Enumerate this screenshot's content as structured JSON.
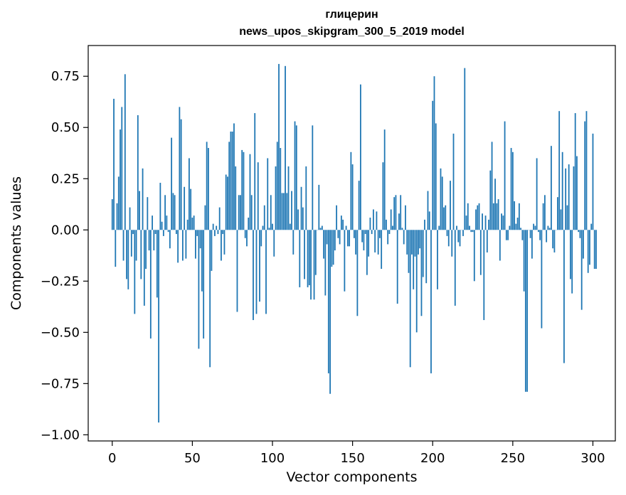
{
  "chart_data": {
    "type": "bar",
    "title": "глицерин",
    "subtitle": "news_upos_skipgram_300_5_2019 model",
    "xlabel": "Vector components",
    "ylabel": "Components values",
    "xlim": [
      -15,
      314
    ],
    "ylim": [
      -1.03,
      0.9
    ],
    "xticks": [
      0,
      50,
      100,
      150,
      200,
      250,
      300
    ],
    "yticks": [
      -1.0,
      -0.75,
      -0.5,
      -0.25,
      0.0,
      0.25,
      0.5,
      0.75
    ],
    "xtick_labels": [
      "0",
      "50",
      "100",
      "150",
      "200",
      "250",
      "300"
    ],
    "ytick_labels": [
      "−1.00",
      "−0.75",
      "−0.50",
      "−0.25",
      "0.00",
      "0.25",
      "0.50",
      "0.75"
    ],
    "grid": false,
    "legend": "none",
    "bar_color": "#1f77b4",
    "series": [
      {
        "x_start": 0,
        "values": [
          0.15,
          0.64,
          -0.18,
          0.13,
          0.26,
          0.49,
          0.6,
          -0.15,
          0.76,
          -0.24,
          -0.29,
          0.11,
          -0.13,
          -0.02,
          -0.41,
          -0.15,
          0.56,
          0.19,
          -0.24,
          0.3,
          -0.37,
          -0.19,
          0.16,
          -0.1,
          -0.53,
          0.07,
          -0.1,
          -0.02,
          -0.33,
          -0.94,
          0.23,
          0.04,
          -0.03,
          0.17,
          0.07,
          -0.01,
          -0.09,
          0.45,
          0.18,
          0.17,
          -0.02,
          -0.16,
          0.6,
          0.54,
          -0.15,
          0.21,
          -0.14,
          0.05,
          0.35,
          0.2,
          0.06,
          0.07,
          -0.14,
          -0.03,
          -0.58,
          -0.09,
          -0.3,
          -0.53,
          0.12,
          0.43,
          0.4,
          -0.67,
          -0.2,
          0.03,
          -0.03,
          0.02,
          -0.02,
          0.11,
          -0.15,
          -0.02,
          -0.12,
          0.27,
          0.26,
          0.43,
          0.48,
          0.48,
          0.52,
          0.31,
          -0.4,
          0.17,
          0.17,
          0.39,
          0.38,
          -0.04,
          -0.08,
          0.06,
          0.37,
          0.17,
          -0.44,
          0.57,
          -0.41,
          0.33,
          -0.35,
          -0.08,
          0.02,
          0.12,
          -0.41,
          0.35,
          0.01,
          0.17,
          0.03,
          -0.13,
          0.31,
          0.43,
          0.81,
          0.4,
          0.18,
          0.18,
          0.8,
          0.18,
          0.31,
          0.03,
          0.19,
          -0.12,
          0.53,
          0.51,
          0.1,
          -0.28,
          0.21,
          0.11,
          -0.24,
          0.31,
          -0.28,
          -0.27,
          -0.34,
          0.51,
          -0.34,
          -0.22,
          0.0,
          0.22,
          0.01,
          0.02,
          -0.14,
          -0.32,
          -0.07,
          -0.7,
          -0.8,
          -0.18,
          -0.17,
          -0.1,
          0.12,
          -0.04,
          -0.07,
          0.07,
          0.05,
          -0.3,
          0.02,
          -0.08,
          -0.08,
          0.38,
          0.32,
          -0.04,
          -0.12,
          -0.42,
          0.24,
          0.71,
          -0.06,
          -0.1,
          -0.02,
          -0.22,
          -0.13,
          0.06,
          -0.02,
          0.1,
          -0.11,
          0.09,
          -0.12,
          -0.04,
          -0.19,
          0.33,
          0.49,
          0.05,
          -0.07,
          -0.02,
          0.1,
          0.02,
          0.16,
          0.17,
          -0.36,
          0.08,
          0.17,
          0.01,
          -0.07,
          0.12,
          -0.12,
          -0.21,
          -0.67,
          -0.12,
          -0.29,
          -0.13,
          -0.5,
          -0.12,
          -0.09,
          -0.42,
          -0.23,
          0.05,
          -0.26,
          0.19,
          0.09,
          -0.7,
          0.63,
          0.75,
          0.52,
          -0.29,
          0.02,
          0.3,
          0.26,
          0.11,
          0.12,
          -0.03,
          -0.08,
          0.24,
          -0.13,
          0.47,
          -0.37,
          0.02,
          -0.06,
          -0.08,
          0.0,
          -0.03,
          0.79,
          0.07,
          0.13,
          0.02,
          -0.01,
          -0.01,
          -0.25,
          0.1,
          0.12,
          0.13,
          -0.22,
          0.08,
          -0.44,
          0.07,
          -0.11,
          0.05,
          0.29,
          0.43,
          0.13,
          0.25,
          0.13,
          0.15,
          -0.15,
          0.08,
          0.07,
          0.53,
          -0.05,
          -0.05,
          0.02,
          0.4,
          0.38,
          0.14,
          0.03,
          0.06,
          0.13,
          0.01,
          -0.05,
          -0.3,
          -0.79,
          -0.79,
          0.0,
          -0.04,
          -0.14,
          0.03,
          0.02,
          0.35,
          -0.01,
          -0.05,
          -0.48,
          0.13,
          0.17,
          -0.06,
          0.02,
          0.01,
          0.41,
          -0.09,
          -0.11,
          0.0,
          0.16,
          0.58,
          0.1,
          0.38,
          -0.65,
          0.3,
          0.12,
          0.32,
          -0.24,
          -0.31,
          0.31,
          0.57,
          0.36,
          -0.01,
          -0.04,
          -0.39,
          -0.14,
          0.53,
          0.58,
          -0.21,
          -0.17,
          0.03,
          0.47,
          -0.19,
          -0.19
        ]
      }
    ]
  }
}
